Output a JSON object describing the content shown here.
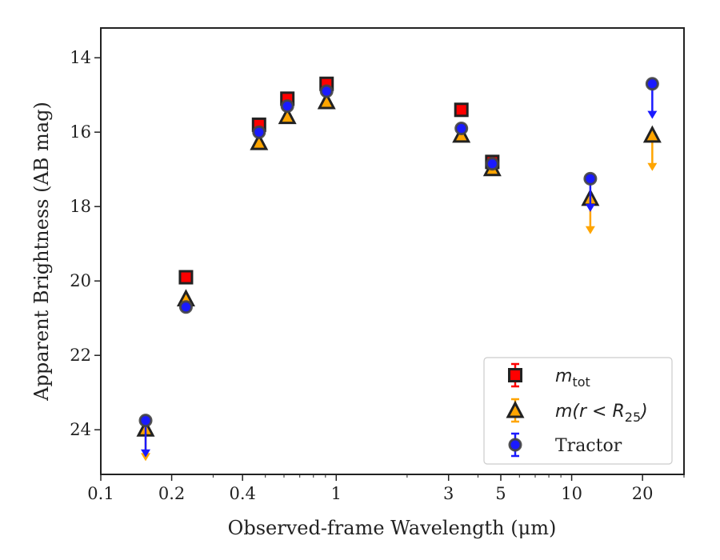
{
  "chart_data": {
    "type": "scatter",
    "xlabel": "Observed-frame Wavelength (μm)",
    "ylabel": "Apparent Brightness (AB mag)",
    "xscale": "log",
    "xlim": [
      0.1,
      30
    ],
    "ylim": [
      25.2,
      13.2
    ],
    "y_inverted": true,
    "x_ticks": [
      0.1,
      0.2,
      0.4,
      1,
      3,
      5,
      10,
      20
    ],
    "x_tick_labels": [
      "0.1",
      "0.2",
      "0.4",
      "1",
      "3",
      "5",
      "10",
      "20"
    ],
    "y_ticks": [
      14,
      16,
      18,
      20,
      22,
      24
    ],
    "y_tick_labels": [
      "14",
      "16",
      "18",
      "20",
      "22",
      "24"
    ],
    "grid": false,
    "legend_position": "lower right",
    "series": [
      {
        "name": "m_tot",
        "legend": {
          "italic": "m",
          "sub": "tot",
          "suffix": ""
        },
        "marker": "square",
        "color": "#ff0000",
        "edge": "#222222",
        "points": [
          {
            "x": 0.23,
            "y": 19.9
          },
          {
            "x": 0.47,
            "y": 15.8
          },
          {
            "x": 0.62,
            "y": 15.1
          },
          {
            "x": 0.91,
            "y": 14.7
          },
          {
            "x": 3.4,
            "y": 15.4
          },
          {
            "x": 4.6,
            "y": 16.8
          }
        ]
      },
      {
        "name": "m(r < R_25)",
        "legend": {
          "italic": "m(r < R",
          "sub": "25",
          "suffix": ")"
        },
        "marker": "triangle",
        "color": "#ffa500",
        "edge": "#222222",
        "points": [
          {
            "x": 0.155,
            "y": 24.0,
            "upper_limit_to": 24.8
          },
          {
            "x": 0.23,
            "y": 20.5
          },
          {
            "x": 0.47,
            "y": 16.3
          },
          {
            "x": 0.62,
            "y": 15.6
          },
          {
            "x": 0.91,
            "y": 15.2
          },
          {
            "x": 3.4,
            "y": 16.1
          },
          {
            "x": 4.6,
            "y": 17.0
          },
          {
            "x": 12.0,
            "y": 17.8,
            "upper_limit_to": 18.7
          },
          {
            "x": 22.0,
            "y": 16.1,
            "upper_limit_to": 17.0
          }
        ]
      },
      {
        "name": "Tractor",
        "legend": {
          "italic": "",
          "sub": "",
          "suffix": "Tractor"
        },
        "marker": "circle",
        "color": "#1a1aff",
        "edge": "#444444",
        "points": [
          {
            "x": 0.155,
            "y": 23.75,
            "upper_limit_to": 24.7
          },
          {
            "x": 0.23,
            "y": 20.7
          },
          {
            "x": 0.47,
            "y": 16.0
          },
          {
            "x": 0.62,
            "y": 15.3
          },
          {
            "x": 0.91,
            "y": 14.9
          },
          {
            "x": 3.4,
            "y": 15.9
          },
          {
            "x": 4.6,
            "y": 16.85
          },
          {
            "x": 12.0,
            "y": 17.25,
            "upper_limit_to": 18.1
          },
          {
            "x": 22.0,
            "y": 14.7,
            "upper_limit_to": 15.6
          }
        ]
      }
    ]
  }
}
